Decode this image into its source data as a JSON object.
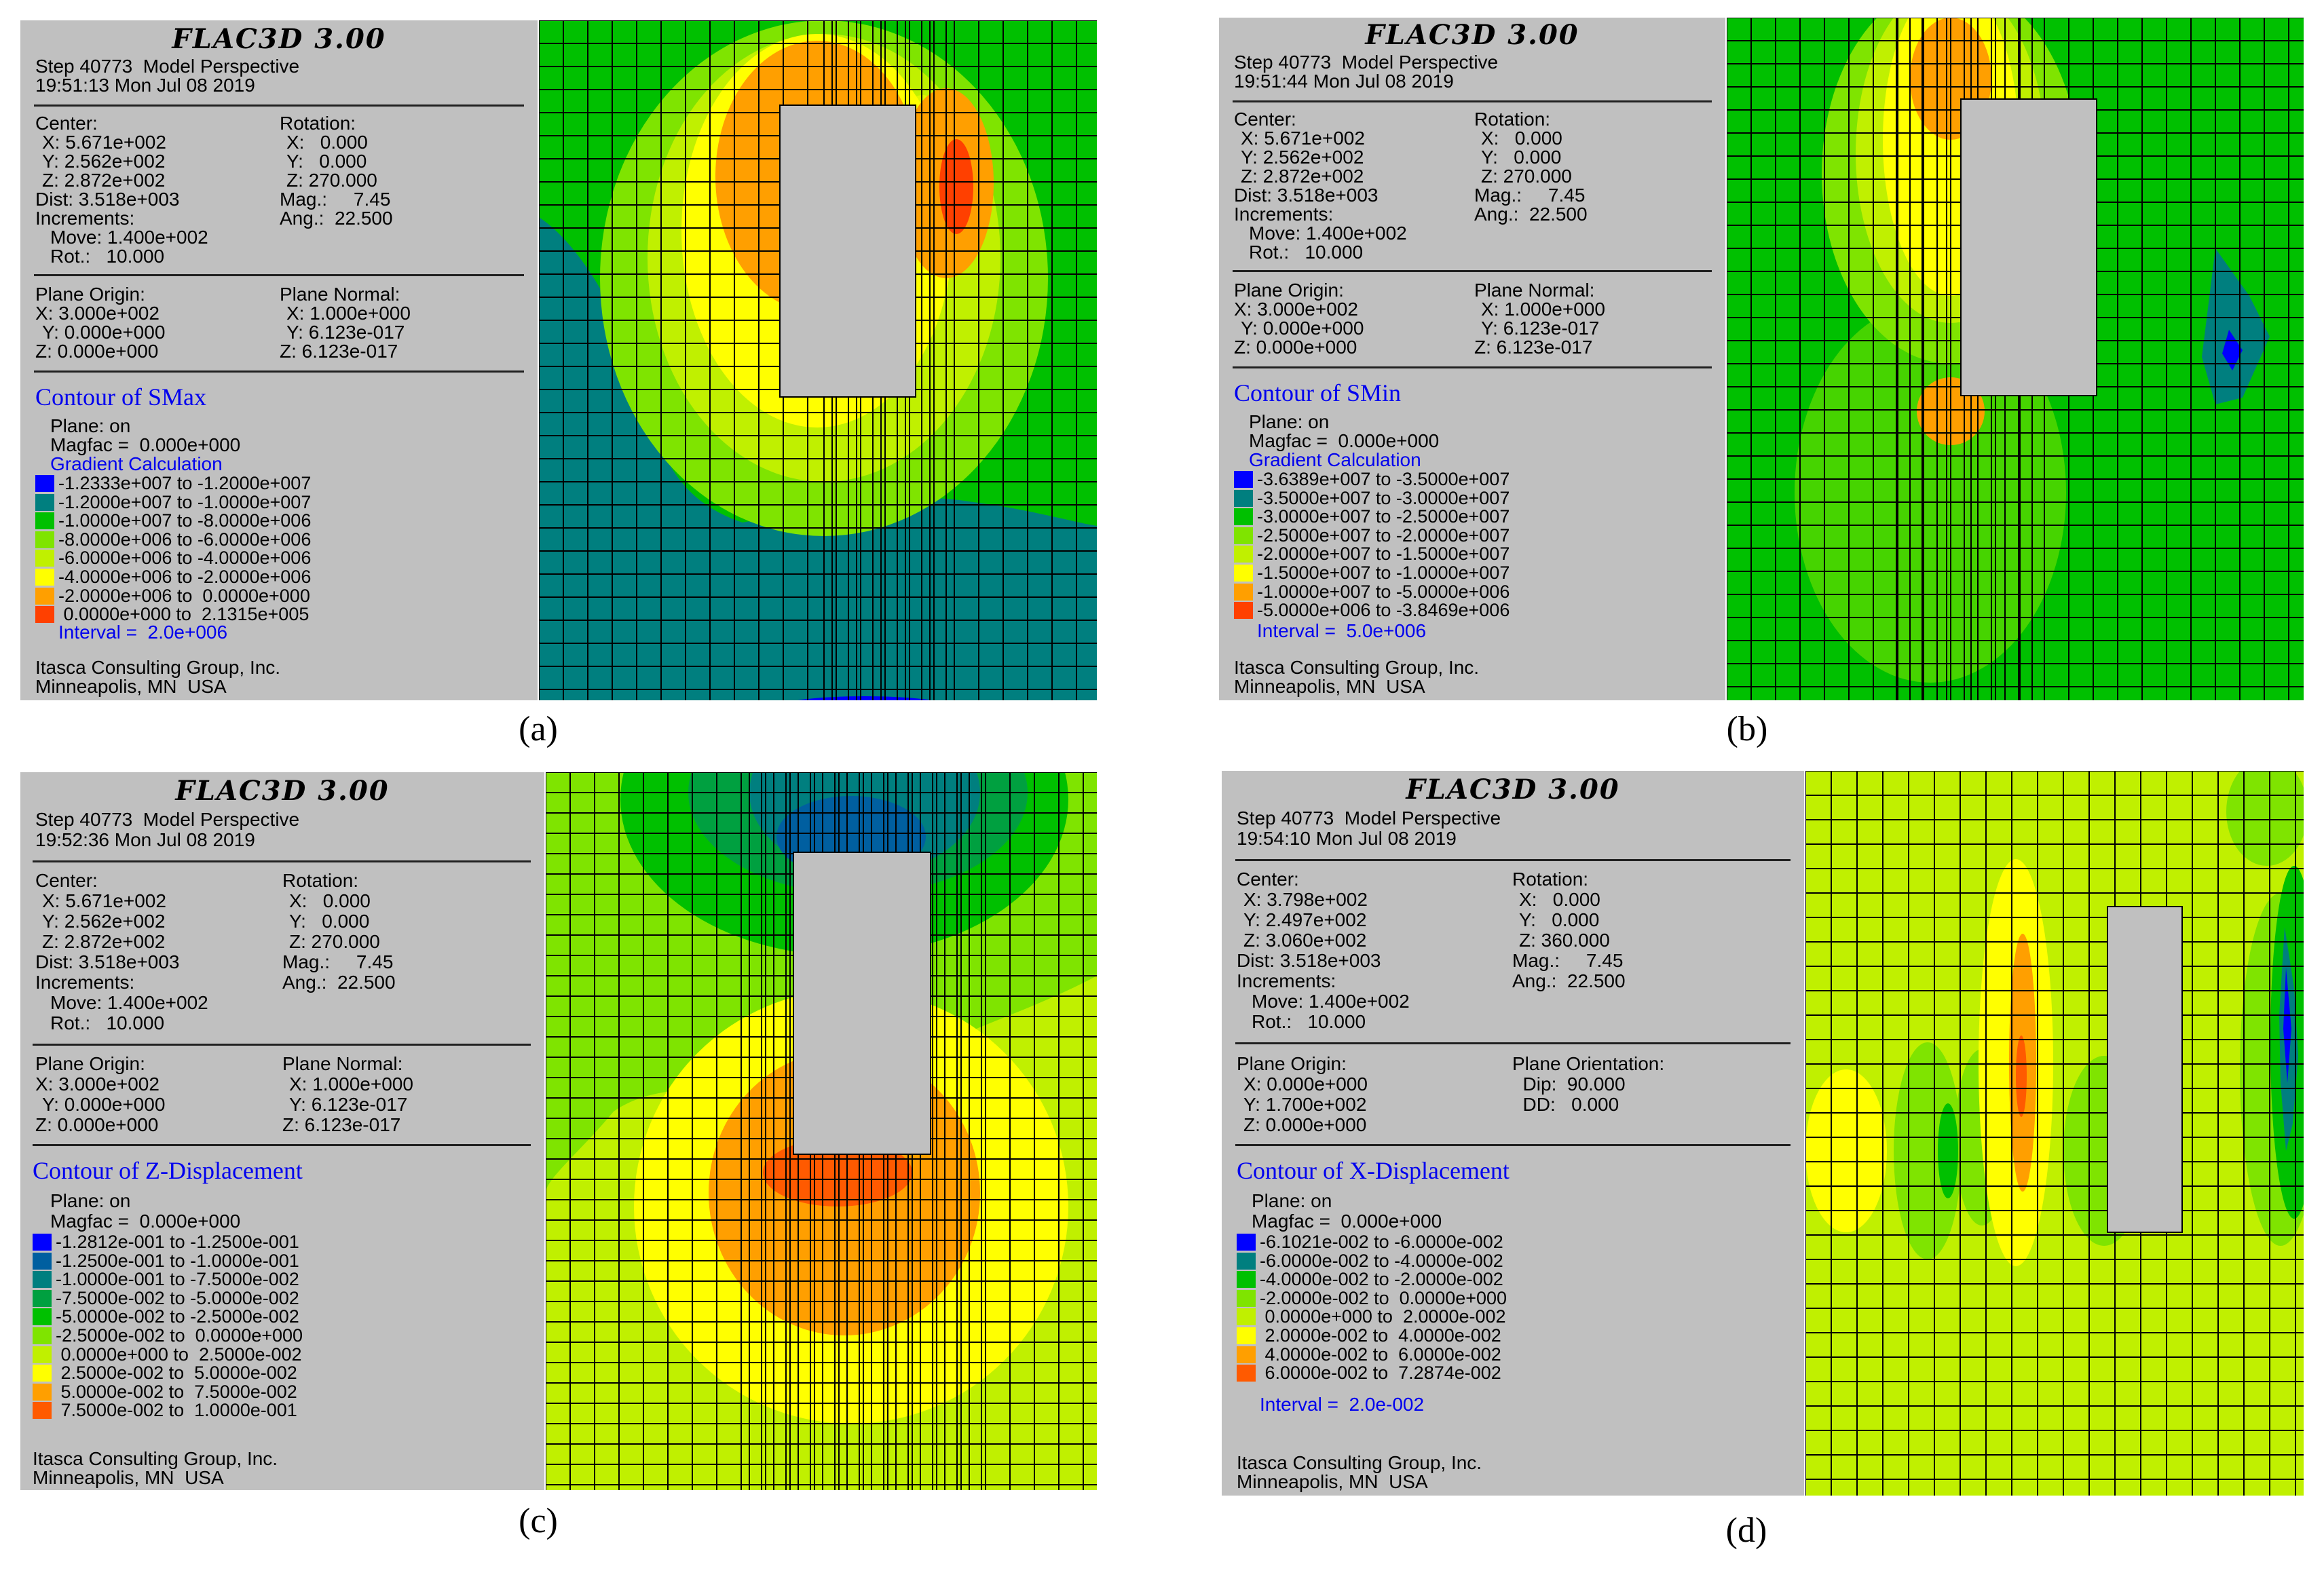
{
  "colors": {
    "panel_bg": "#c0c0c0",
    "mesh": "#000000",
    "excavation": "#c0c0c0",
    "c_blue": "#0000ff",
    "c_teal": "#007f7f",
    "c_green": "#00c000",
    "c_lime": "#7fe400",
    "c_ylime": "#c0f000",
    "c_yellow": "#ffff00",
    "c_orange": "#ff9f00",
    "c_red": "#ff4000"
  },
  "panels": [
    {
      "key": "a",
      "caption": "(a)",
      "title": "FLAC3D 3.00",
      "step": "Step 40773  Model Perspective",
      "time": "19:51:13 Mon Jul 08 2019",
      "center": {
        "label": "Center:",
        "x": "X: 5.671e+002",
        "y": "Y: 2.562e+002",
        "z": "Z: 2.872e+002"
      },
      "rotation": {
        "label": "Rotation:",
        "x": "X:   0.000",
        "y": "Y:   0.000",
        "z": "Z: 270.000"
      },
      "dist": "Dist: 3.518e+003",
      "mag": "Mag.:     7.45",
      "increments": "Increments:",
      "ang": "Ang.:  22.500",
      "move": "Move: 1.400e+002",
      "rot": "Rot.:   10.000",
      "plane_origin": {
        "label": "Plane Origin:",
        "x": "X: 3.000e+002",
        "y": "Y: 0.000e+000",
        "z": "Z: 0.000e+000"
      },
      "plane_right": {
        "label": "Plane Normal:",
        "l1": "X: 1.000e+000",
        "l2": "Y: 6.123e-017",
        "l3": "Z: 6.123e-017"
      },
      "contour_title": "Contour of SMax",
      "plane_on": "Plane: on",
      "magfac": "Magfac =  0.000e+000",
      "gradient": "Gradient Calculation",
      "legend": [
        {
          "color": "#0000ff",
          "label": "-1.2333e+007 to -1.2000e+007"
        },
        {
          "color": "#007f7f",
          "label": "-1.2000e+007 to -1.0000e+007"
        },
        {
          "color": "#00c000",
          "label": "-1.0000e+007 to -8.0000e+006"
        },
        {
          "color": "#7fe400",
          "label": "-8.0000e+006 to -6.0000e+006"
        },
        {
          "color": "#c0f000",
          "label": "-6.0000e+006 to -4.0000e+006"
        },
        {
          "color": "#ffff00",
          "label": "-4.0000e+006 to -2.0000e+006"
        },
        {
          "color": "#ff9f00",
          "label": "-2.0000e+006 to  0.0000e+000"
        },
        {
          "color": "#ff4000",
          "label": " 0.0000e+000 to  2.1315e+005"
        }
      ],
      "interval": "Interval =  2.0e+006",
      "company": "Itasca Consulting Group, Inc.",
      "location": "Minneapolis, MN  USA"
    },
    {
      "key": "b",
      "caption": "(b)",
      "title": "FLAC3D 3.00",
      "step": "Step 40773  Model Perspective",
      "time": "19:51:44 Mon Jul 08 2019",
      "center": {
        "label": "Center:",
        "x": "X: 5.671e+002",
        "y": "Y: 2.562e+002",
        "z": "Z: 2.872e+002"
      },
      "rotation": {
        "label": "Rotation:",
        "x": "X:   0.000",
        "y": "Y:   0.000",
        "z": "Z: 270.000"
      },
      "dist": "Dist: 3.518e+003",
      "mag": "Mag.:     7.45",
      "increments": "Increments:",
      "ang": "Ang.:  22.500",
      "move": "Move: 1.400e+002",
      "rot": "Rot.:   10.000",
      "plane_origin": {
        "label": "Plane Origin:",
        "x": "X: 3.000e+002",
        "y": "Y: 0.000e+000",
        "z": "Z: 0.000e+000"
      },
      "plane_right": {
        "label": "Plane Normal:",
        "l1": "X: 1.000e+000",
        "l2": "Y: 6.123e-017",
        "l3": "Z: 6.123e-017"
      },
      "contour_title": "Contour of SMin",
      "plane_on": "Plane: on",
      "magfac": "Magfac =  0.000e+000",
      "gradient": "Gradient Calculation",
      "legend": [
        {
          "color": "#0000ff",
          "label": "-3.6389e+007 to -3.5000e+007"
        },
        {
          "color": "#007f7f",
          "label": "-3.5000e+007 to -3.0000e+007"
        },
        {
          "color": "#00c000",
          "label": "-3.0000e+007 to -2.5000e+007"
        },
        {
          "color": "#7fe400",
          "label": "-2.5000e+007 to -2.0000e+007"
        },
        {
          "color": "#c0f000",
          "label": "-2.0000e+007 to -1.5000e+007"
        },
        {
          "color": "#ffff00",
          "label": "-1.5000e+007 to -1.0000e+007"
        },
        {
          "color": "#ff9f00",
          "label": "-1.0000e+007 to -5.0000e+006"
        },
        {
          "color": "#ff4000",
          "label": "-5.0000e+006 to -3.8469e+006"
        }
      ],
      "interval": "Interval =  5.0e+006",
      "company": "Itasca Consulting Group, Inc.",
      "location": "Minneapolis, MN  USA"
    },
    {
      "key": "c",
      "caption": "(c)",
      "title": "FLAC3D 3.00",
      "step": "Step 40773  Model Perspective",
      "time": "19:52:36 Mon Jul 08 2019",
      "center": {
        "label": "Center:",
        "x": "X: 5.671e+002",
        "y": "Y: 2.562e+002",
        "z": "Z: 2.872e+002"
      },
      "rotation": {
        "label": "Rotation:",
        "x": "X:   0.000",
        "y": "Y:   0.000",
        "z": "Z: 270.000"
      },
      "dist": "Dist: 3.518e+003",
      "mag": "Mag.:     7.45",
      "increments": "Increments:",
      "ang": "Ang.:  22.500",
      "move": "Move: 1.400e+002",
      "rot": "Rot.:   10.000",
      "plane_origin": {
        "label": "Plane Origin:",
        "x": "X: 3.000e+002",
        "y": "Y: 0.000e+000",
        "z": "Z: 0.000e+000"
      },
      "plane_right": {
        "label": "Plane Normal:",
        "l1": "X: 1.000e+000",
        "l2": "Y: 6.123e-017",
        "l3": "Z: 6.123e-017"
      },
      "contour_title": "Contour of Z-Displacement",
      "plane_on": "Plane: on",
      "magfac": "Magfac =  0.000e+000",
      "gradient": "",
      "legend": [
        {
          "color": "#0000ff",
          "label": "-1.2812e-001 to -1.2500e-001"
        },
        {
          "color": "#005fa0",
          "label": "-1.2500e-001 to -1.0000e-001"
        },
        {
          "color": "#007f7f",
          "label": "-1.0000e-001 to -7.5000e-002"
        },
        {
          "color": "#00a040",
          "label": "-7.5000e-002 to -5.0000e-002"
        },
        {
          "color": "#00c000",
          "label": "-5.0000e-002 to -2.5000e-002"
        },
        {
          "color": "#7fe400",
          "label": "-2.5000e-002 to  0.0000e+000"
        },
        {
          "color": "#c0f000",
          "label": " 0.0000e+000 to  2.5000e-002"
        },
        {
          "color": "#ffff00",
          "label": " 2.5000e-002 to  5.0000e-002"
        },
        {
          "color": "#ff9f00",
          "label": " 5.0000e-002 to  7.5000e-002"
        },
        {
          "color": "#ff5a00",
          "label": " 7.5000e-002 to  1.0000e-001"
        }
      ],
      "interval": "",
      "company": "Itasca Consulting Group, Inc.",
      "location": "Minneapolis, MN  USA"
    },
    {
      "key": "d",
      "caption": "(d)",
      "title": "FLAC3D 3.00",
      "step": "Step 40773  Model Perspective",
      "time": "19:54:10 Mon Jul 08 2019",
      "center": {
        "label": "Center:",
        "x": "X: 3.798e+002",
        "y": "Y: 2.497e+002",
        "z": "Z: 3.060e+002"
      },
      "rotation": {
        "label": "Rotation:",
        "x": "X:   0.000",
        "y": "Y:   0.000",
        "z": "Z: 360.000"
      },
      "dist": "Dist: 3.518e+003",
      "mag": "Mag.:     7.45",
      "increments": "Increments:",
      "ang": "Ang.:  22.500",
      "move": "Move: 1.400e+002",
      "rot": "Rot.:   10.000",
      "plane_origin": {
        "label": "Plane Origin:",
        "x": "X: 0.000e+000",
        "y": "Y: 1.700e+002",
        "z": "Z: 0.000e+000"
      },
      "plane_right": {
        "label": "Plane Orientation:",
        "l1": "  Dip:  90.000",
        "l2": "  DD:   0.000",
        "l3": ""
      },
      "contour_title": "Contour of X-Displacement",
      "plane_on": "Plane: on",
      "magfac": "Magfac =  0.000e+000",
      "gradient": "",
      "legend": [
        {
          "color": "#0000ff",
          "label": "-6.1021e-002 to -6.0000e-002"
        },
        {
          "color": "#007f7f",
          "label": "-6.0000e-002 to -4.0000e-002"
        },
        {
          "color": "#00c000",
          "label": "-4.0000e-002 to -2.0000e-002"
        },
        {
          "color": "#7fe400",
          "label": "-2.0000e-002 to  0.0000e+000"
        },
        {
          "color": "#c0f000",
          "label": " 0.0000e+000 to  2.0000e-002"
        },
        {
          "color": "#ffff00",
          "label": " 2.0000e-002 to  4.0000e-002"
        },
        {
          "color": "#ff9f00",
          "label": " 4.0000e-002 to  6.0000e-002"
        },
        {
          "color": "#ff5a00",
          "label": " 6.0000e-002 to  7.2874e-002"
        }
      ],
      "interval": "Interval =  2.0e-002",
      "company": "Itasca Consulting Group, Inc.",
      "location": "Minneapolis, MN  USA"
    }
  ]
}
